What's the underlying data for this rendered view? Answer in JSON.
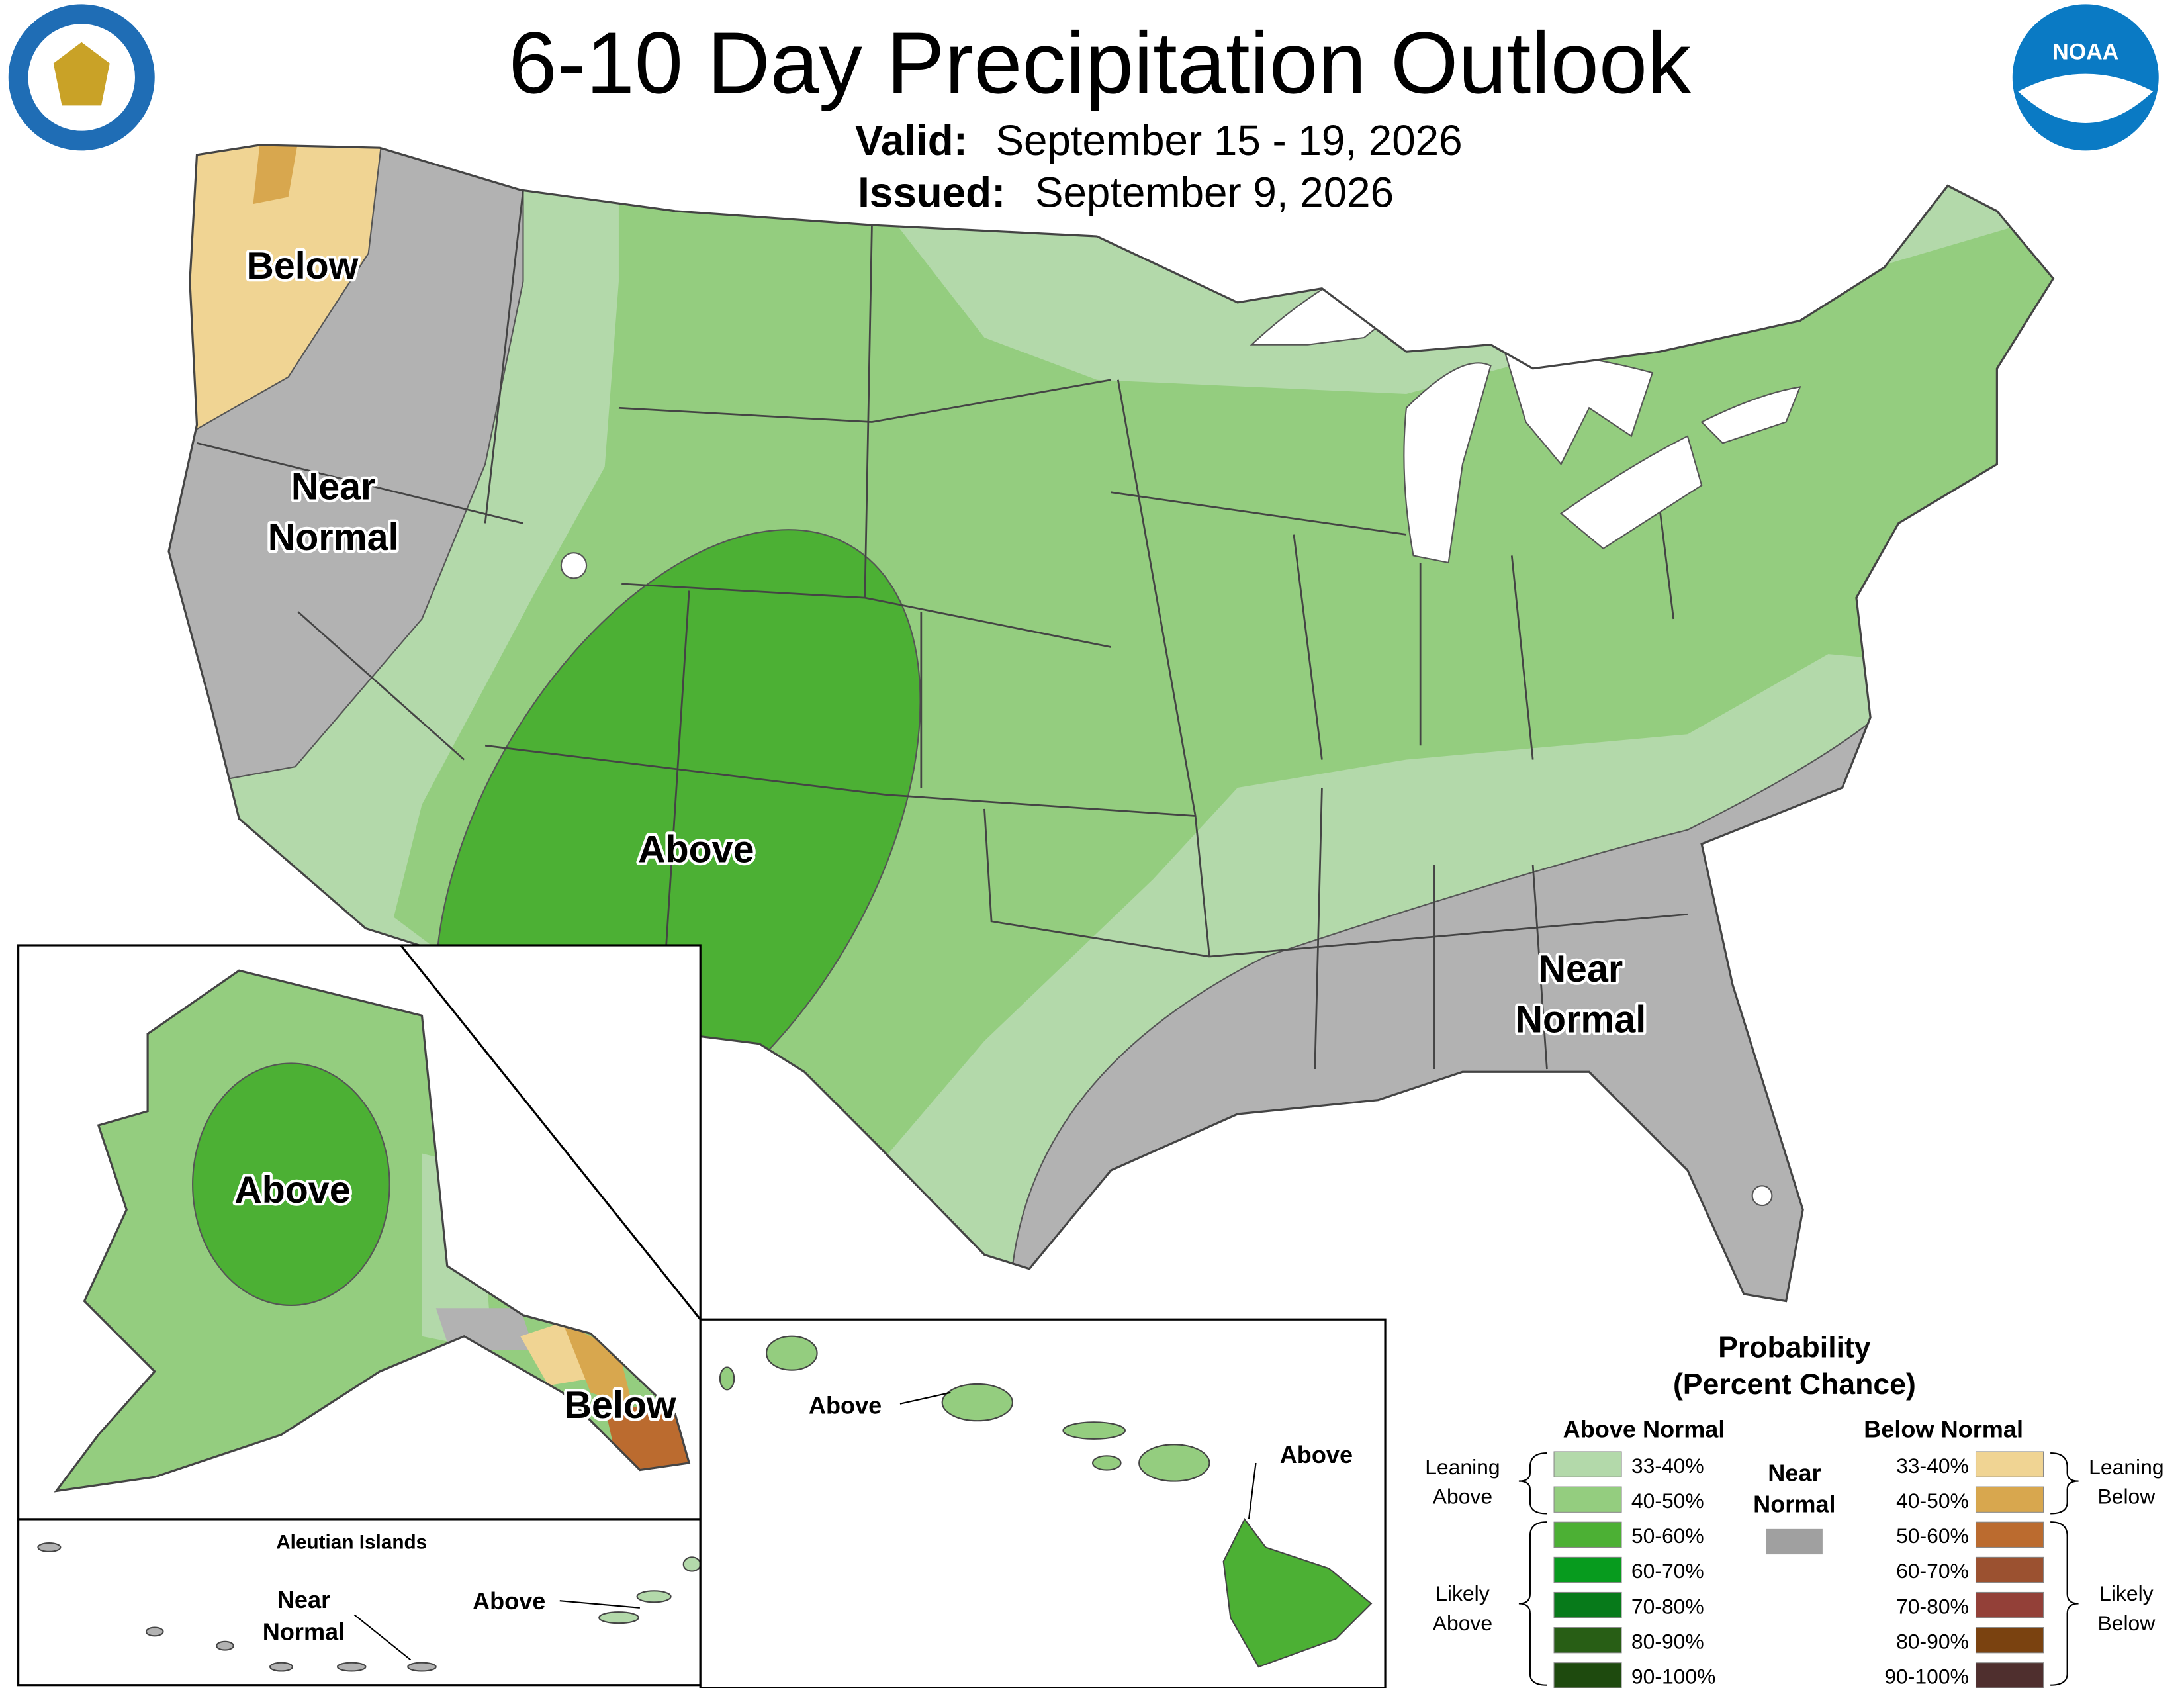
{
  "header": {
    "title": "6-10 Day Precipitation Outlook",
    "valid_label": "Valid:",
    "valid_value": "September 15 - 19, 2026",
    "issued_label": "Issued:",
    "issued_value": "September 9, 2026",
    "noaa_logo": "NOAA"
  },
  "map_labels": [
    {
      "lines": [
        "Below"
      ]
    },
    {
      "lines": [
        "Near",
        "Normal"
      ]
    },
    {
      "lines": [
        "Above"
      ]
    },
    {
      "lines": [
        "Near",
        "Normal"
      ]
    },
    {
      "lines": [
        "Above"
      ]
    },
    {
      "lines": [
        "Below"
      ]
    },
    {
      "lines": [
        "Above"
      ]
    },
    {
      "lines": [
        "Above"
      ]
    },
    {
      "lines": [
        "Near",
        "Normal"
      ]
    },
    {
      "lines": [
        "Above"
      ]
    }
  ],
  "aleutian_title": "Aleutian Islands",
  "legend": {
    "title": [
      "Probability",
      "(Percent Chance)"
    ],
    "above": {
      "heading": "Above Normal",
      "items": [
        {
          "label": "33-40%",
          "color": "#b3d9aa"
        },
        {
          "label": "40-50%",
          "color": "#94cd7f"
        },
        {
          "label": "50-60%",
          "color": "#4cb034"
        },
        {
          "label": "60-70%",
          "color": "#079b1e"
        },
        {
          "label": "70-80%",
          "color": "#077a1a"
        },
        {
          "label": "80-90%",
          "color": "#285e15"
        },
        {
          "label": "90-100%",
          "color": "#1e4a0e"
        }
      ],
      "leaning": [
        "Leaning",
        "Above"
      ],
      "likely": [
        "Likely",
        "Above"
      ]
    },
    "below": {
      "heading": "Below Normal",
      "items": [
        {
          "label": "33-40%",
          "color": "#f0d493"
        },
        {
          "label": "40-50%",
          "color": "#d8a74e"
        },
        {
          "label": "50-60%",
          "color": "#bb6b2f"
        },
        {
          "label": "60-70%",
          "color": "#9b5130"
        },
        {
          "label": "70-80%",
          "color": "#934038"
        },
        {
          "label": "80-90%",
          "color": "#7a4210"
        },
        {
          "label": "90-100%",
          "color": "#4f2f2e"
        }
      ],
      "leaning": [
        "Leaning",
        "Below"
      ],
      "likely": [
        "Likely",
        "Below"
      ]
    },
    "near": {
      "lines": [
        "Near",
        "Normal"
      ],
      "color": "#a0a0a0"
    }
  }
}
